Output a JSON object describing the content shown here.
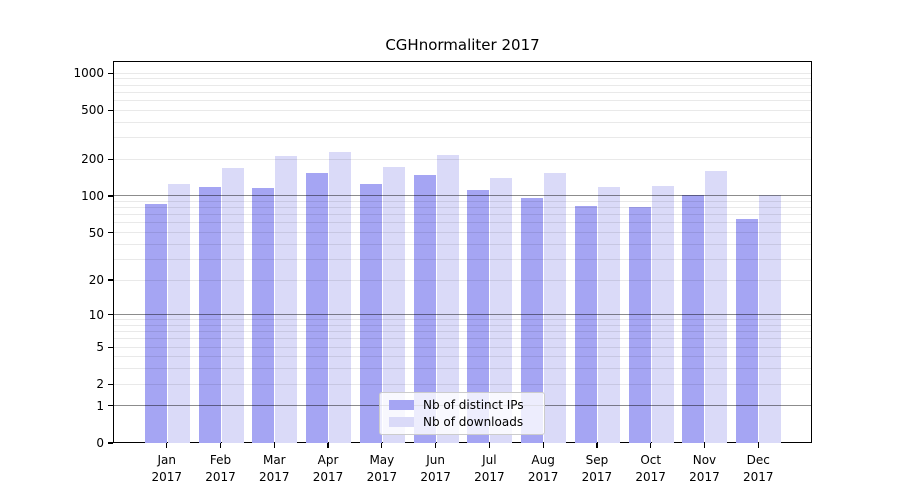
{
  "title": "CGHnormaliter 2017",
  "chart_data": {
    "type": "bar",
    "title": "CGHnormaliter 2017",
    "categories": [
      "Jan 2017",
      "Feb 2017",
      "Mar 2017",
      "Apr 2017",
      "May 2017",
      "Jun 2017",
      "Jul 2017",
      "Aug 2017",
      "Sep 2017",
      "Oct 2017",
      "Nov 2017",
      "Dec 2017"
    ],
    "x_tick_month": [
      "Jan",
      "Feb",
      "Mar",
      "Apr",
      "May",
      "Jun",
      "Jul",
      "Aug",
      "Sep",
      "Oct",
      "Nov",
      "Dec"
    ],
    "x_tick_year": "2017",
    "series": [
      {
        "name": "Nb of distinct IPs",
        "color": "#a5a5f3",
        "values": [
          86,
          119,
          116,
          155,
          126,
          149,
          112,
          96,
          83,
          81,
          101,
          65
        ]
      },
      {
        "name": "Nb of downloads",
        "color": "#dadaf8",
        "values": [
          125,
          169,
          212,
          227,
          174,
          216,
          141,
          155,
          119,
          120,
          159,
          101
        ]
      }
    ],
    "yscale": "log1p",
    "ylim": [
      0,
      1257
    ],
    "yticks": [
      0,
      1,
      2,
      5,
      10,
      20,
      50,
      100,
      200,
      500,
      1000
    ],
    "major_gridline_values": [
      1,
      10,
      100
    ],
    "grid": true,
    "legend_position": "lower center",
    "xlabel": "",
    "ylabel": ""
  },
  "colors": {
    "background": "#ffffff",
    "spine": "#000000",
    "bar_distinct_ips": "#a5a5f3",
    "bar_downloads": "#dadaf8",
    "major_grid": "rgba(0,0,0,0.45)",
    "minor_grid": "rgba(0,0,0,0.085)",
    "legend_background": "rgba(255,255,255,0.8)",
    "legend_border": "#cccccc"
  }
}
